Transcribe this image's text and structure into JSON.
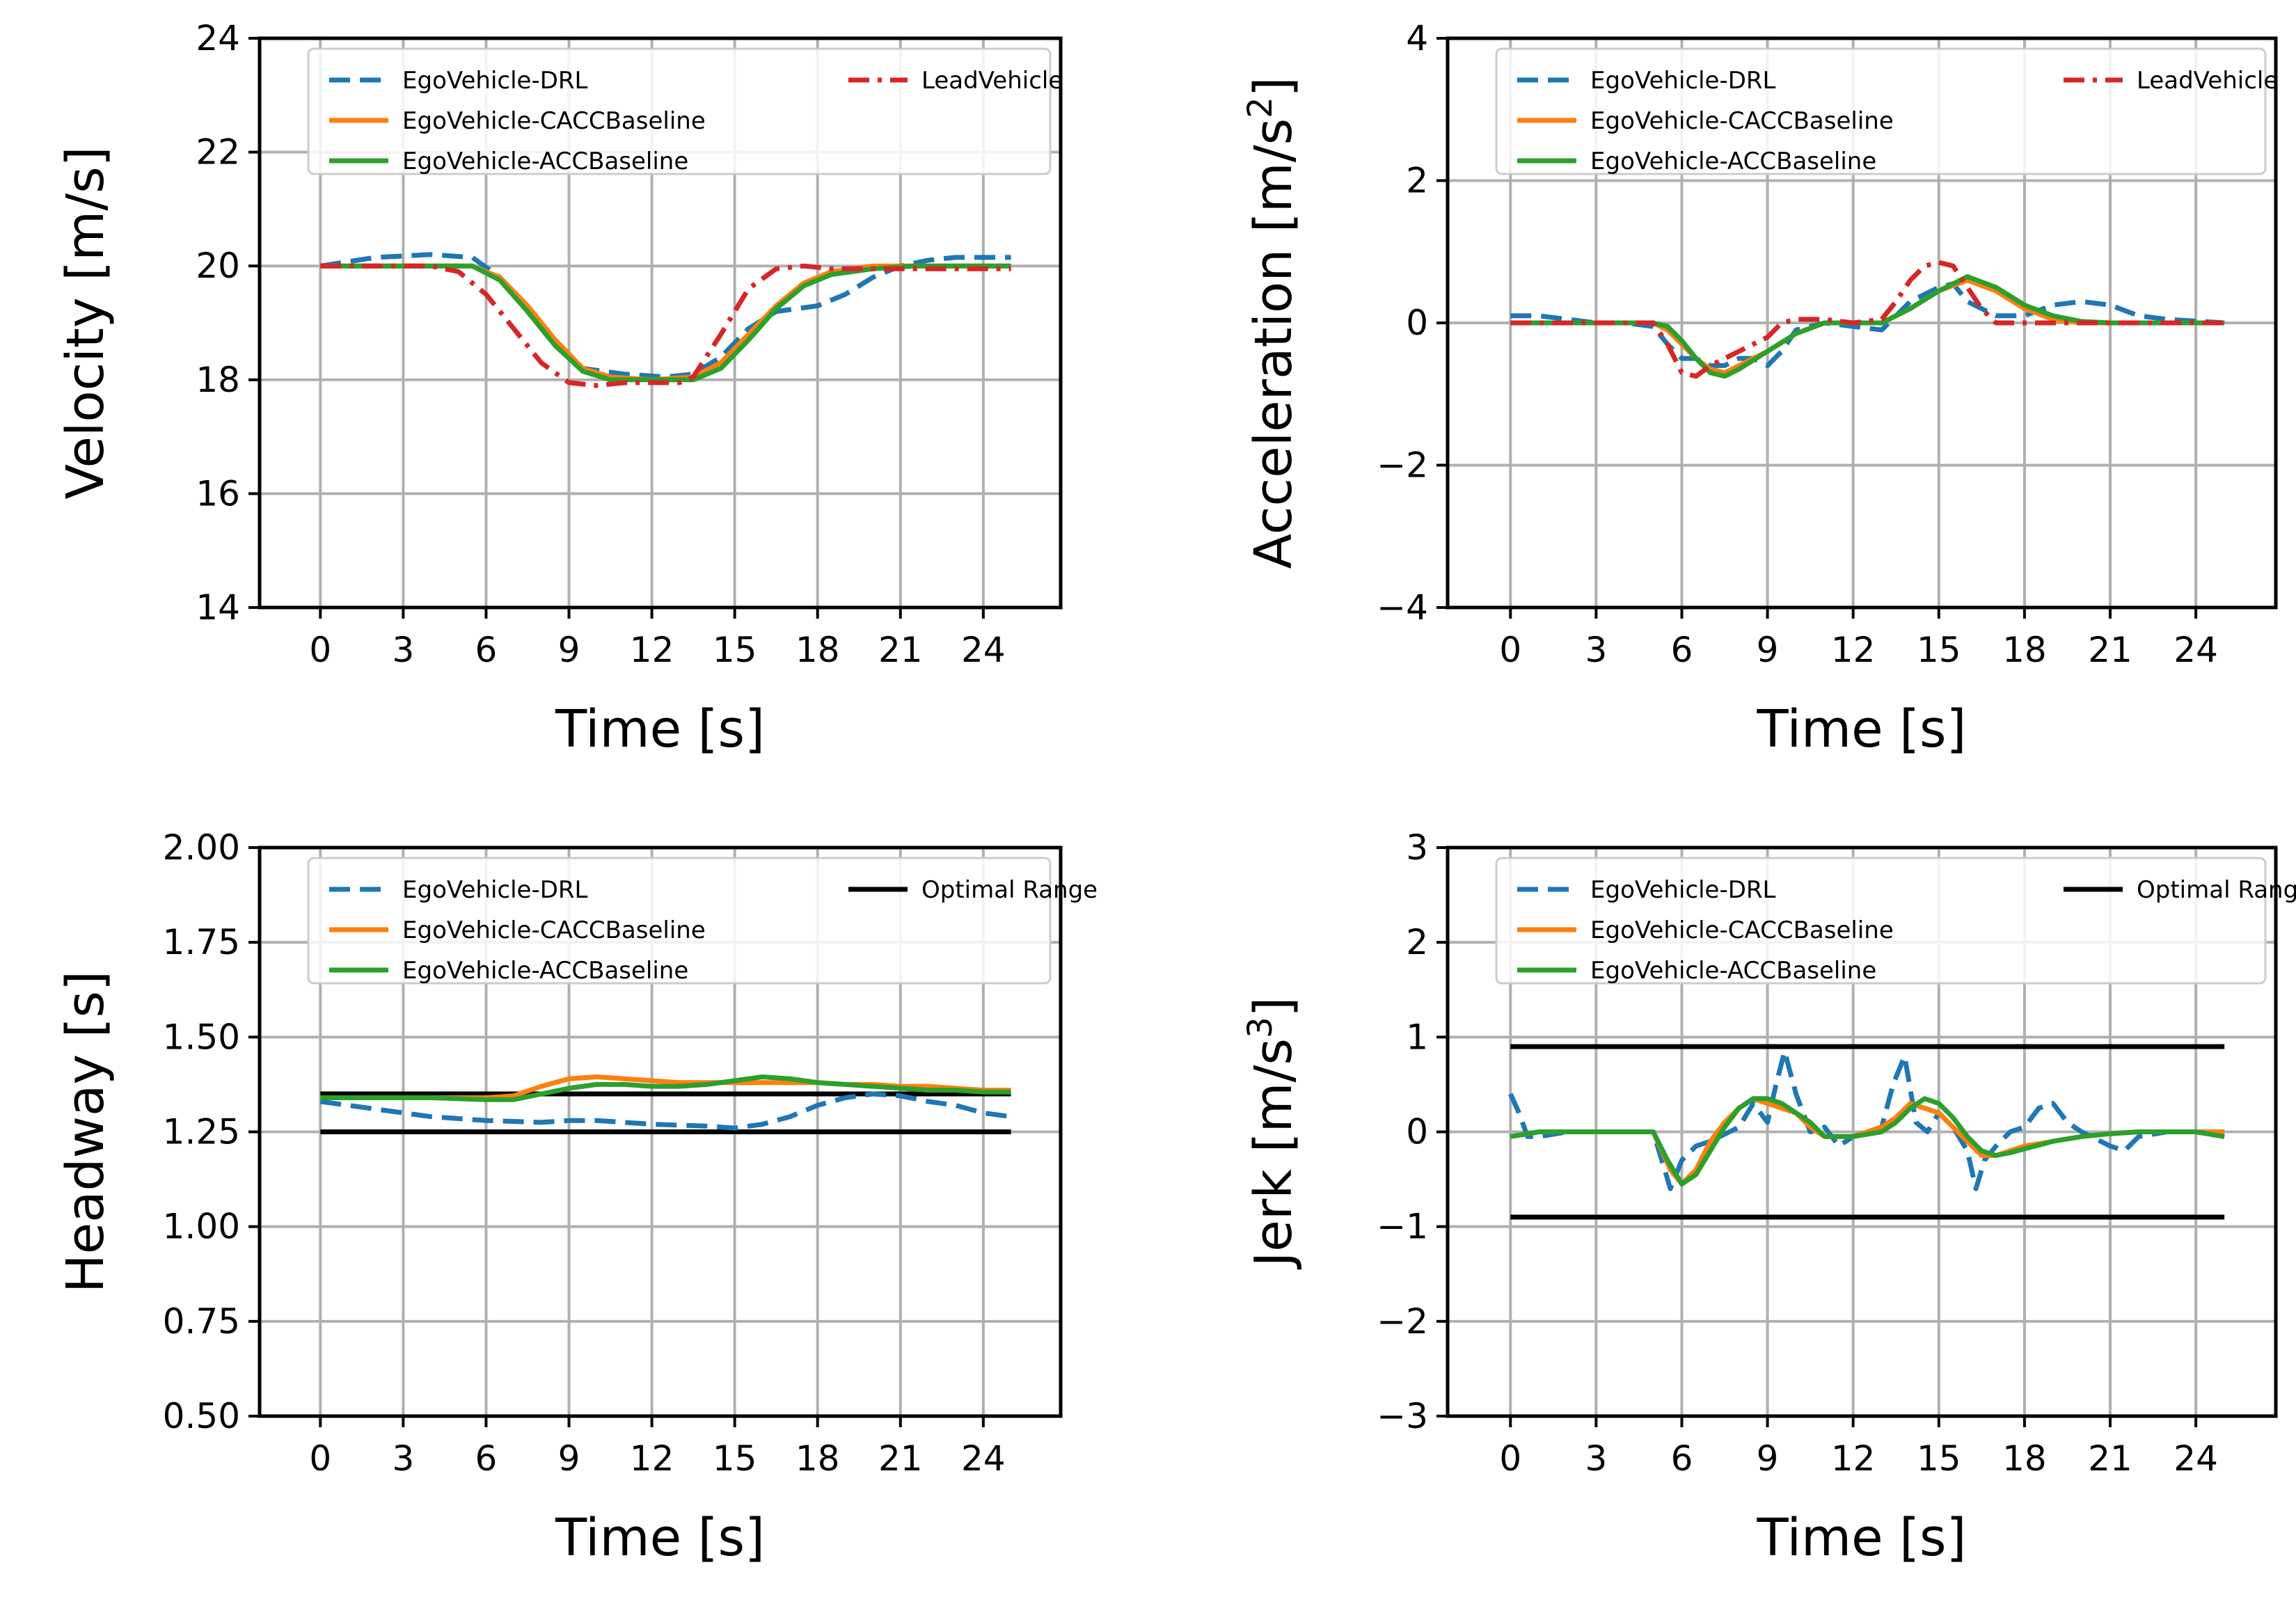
{
  "chart_data": [
    {
      "id": "velocity",
      "type": "line",
      "xlabel": "Time [s]",
      "ylabel": "Velocity [m/s]",
      "xlim": [
        -2.2,
        26.8
      ],
      "ylim": [
        14,
        24
      ],
      "xticks": [
        0,
        3,
        6,
        9,
        12,
        15,
        18,
        21,
        24
      ],
      "xtick_labels": [
        "0",
        "3",
        "6",
        "9",
        "12",
        "15",
        "18",
        "21",
        "24"
      ],
      "yticks": [
        14,
        16,
        18,
        20,
        22,
        24
      ],
      "ytick_labels": [
        "14",
        "16",
        "18",
        "20",
        "22",
        "24"
      ],
      "grid": true,
      "legend": {
        "position": "top",
        "columns": [
          [
            "EgoVehicle-DRL",
            "EgoVehicle-CACCBaseline",
            "EgoVehicle-ACCBaseline"
          ],
          [
            "LeadVehicle"
          ]
        ]
      },
      "series": [
        {
          "name": "EgoVehicle-DRL",
          "color": "#1f77b4",
          "style": "dashed",
          "x": [
            0,
            2,
            4,
            5.5,
            6.5,
            7.5,
            8.5,
            9.5,
            11,
            12.5,
            13.5,
            14.5,
            15.5,
            16.5,
            18,
            19,
            20,
            21,
            22,
            23,
            25
          ],
          "y": [
            20.0,
            20.15,
            20.2,
            20.15,
            19.8,
            19.2,
            18.6,
            18.2,
            18.1,
            18.05,
            18.1,
            18.4,
            18.9,
            19.2,
            19.3,
            19.5,
            19.8,
            20.0,
            20.1,
            20.15,
            20.15
          ]
        },
        {
          "name": "EgoVehicle-CACCBaseline",
          "color": "#ff7f0e",
          "style": "solid",
          "x": [
            0,
            4,
            5.5,
            6.5,
            7.5,
            8.5,
            9.5,
            10.5,
            12,
            13.5,
            14.5,
            15.5,
            16.5,
            17.5,
            18.5,
            20,
            21.5,
            23,
            25
          ],
          "y": [
            20.0,
            20.0,
            20.0,
            19.8,
            19.3,
            18.7,
            18.2,
            18.05,
            18.0,
            18.05,
            18.3,
            18.8,
            19.3,
            19.7,
            19.9,
            20.0,
            20.0,
            20.0,
            20.0
          ]
        },
        {
          "name": "EgoVehicle-ACCBaseline",
          "color": "#2ca02c",
          "style": "solid",
          "x": [
            0,
            4,
            5.5,
            6.5,
            7.5,
            8.5,
            9.5,
            10.5,
            12,
            13.5,
            14.5,
            15.5,
            16.5,
            17.5,
            18.5,
            20,
            21.5,
            23,
            25
          ],
          "y": [
            20.0,
            20.0,
            20.0,
            19.75,
            19.2,
            18.6,
            18.15,
            18.0,
            18.0,
            18.0,
            18.2,
            18.7,
            19.25,
            19.65,
            19.85,
            19.95,
            20.0,
            20.0,
            20.0
          ]
        },
        {
          "name": "LeadVehicle",
          "color": "#d62728",
          "style": "dashdot",
          "x": [
            0,
            4,
            5,
            6,
            7,
            8,
            9,
            10,
            11,
            12,
            13,
            13.5,
            14.5,
            15.5,
            16.5,
            17.5,
            18.5,
            20,
            22,
            25
          ],
          "y": [
            20.0,
            20.0,
            19.9,
            19.5,
            18.9,
            18.3,
            17.95,
            17.9,
            17.95,
            17.95,
            17.95,
            18.05,
            18.8,
            19.6,
            19.95,
            20.0,
            19.95,
            19.95,
            19.95,
            19.95
          ]
        }
      ]
    },
    {
      "id": "acceleration",
      "type": "line",
      "xlabel": "Time [s]",
      "ylabel": "Acceleration [m/s",
      "ylabel_sup": "2",
      "ylabel_end": "]",
      "xlim": [
        -2.2,
        26.8
      ],
      "ylim": [
        -4,
        4
      ],
      "xticks": [
        0,
        3,
        6,
        9,
        12,
        15,
        18,
        21,
        24
      ],
      "xtick_labels": [
        "0",
        "3",
        "6",
        "9",
        "12",
        "15",
        "18",
        "21",
        "24"
      ],
      "yticks": [
        -4,
        -2,
        0,
        2,
        4
      ],
      "ytick_labels": [
        "−4",
        "−2",
        "0",
        "2",
        "4"
      ],
      "grid": true,
      "legend": {
        "position": "top",
        "columns": [
          [
            "EgoVehicle-DRL",
            "EgoVehicle-CACCBaseline",
            "EgoVehicle-ACCBaseline"
          ],
          [
            "LeadVehicle"
          ]
        ]
      },
      "series": [
        {
          "name": "EgoVehicle-DRL",
          "color": "#1f77b4",
          "style": "dashed",
          "x": [
            0,
            1,
            2,
            3,
            4,
            5,
            5.5,
            6,
            6.5,
            7,
            7.5,
            8,
            8.5,
            9,
            9.5,
            10,
            11,
            12,
            13,
            14,
            15,
            15.5,
            16,
            17,
            18,
            19,
            20,
            21,
            22,
            23,
            25
          ],
          "y": [
            0.1,
            0.1,
            0.05,
            0.0,
            0.0,
            -0.05,
            -0.3,
            -0.5,
            -0.5,
            -0.6,
            -0.6,
            -0.5,
            -0.5,
            -0.6,
            -0.4,
            -0.1,
            0.0,
            -0.05,
            -0.1,
            0.3,
            0.5,
            0.55,
            0.3,
            0.1,
            0.1,
            0.25,
            0.3,
            0.25,
            0.1,
            0.05,
            0.0
          ]
        },
        {
          "name": "EgoVehicle-CACCBaseline",
          "color": "#ff7f0e",
          "style": "solid",
          "x": [
            0,
            4,
            5,
            5.5,
            6,
            6.5,
            7,
            7.5,
            8,
            9,
            10,
            11,
            12,
            13,
            14,
            15,
            16,
            17,
            18,
            19,
            20,
            21,
            23,
            25
          ],
          "y": [
            0.0,
            0.0,
            0.0,
            -0.1,
            -0.3,
            -0.5,
            -0.65,
            -0.7,
            -0.6,
            -0.4,
            -0.15,
            0.0,
            0.0,
            0.0,
            0.2,
            0.45,
            0.6,
            0.45,
            0.2,
            0.05,
            0.0,
            0.0,
            0.0,
            0.0
          ]
        },
        {
          "name": "EgoVehicle-ACCBaseline",
          "color": "#2ca02c",
          "style": "solid",
          "x": [
            0,
            4,
            5,
            5.5,
            6,
            6.5,
            7,
            7.5,
            8,
            9,
            10,
            11,
            12,
            13,
            14,
            15,
            16,
            17,
            18,
            19,
            20,
            21,
            23,
            25
          ],
          "y": [
            0.0,
            0.0,
            0.0,
            -0.05,
            -0.25,
            -0.5,
            -0.7,
            -0.75,
            -0.65,
            -0.4,
            -0.15,
            0.0,
            0.0,
            0.0,
            0.2,
            0.45,
            0.65,
            0.5,
            0.25,
            0.1,
            0.02,
            0.0,
            0.0,
            0.0
          ]
        },
        {
          "name": "LeadVehicle",
          "color": "#d62728",
          "style": "dashdot",
          "x": [
            0,
            4,
            5,
            5.5,
            6,
            6.5,
            7,
            7.5,
            8,
            9,
            9.5,
            10,
            11,
            12,
            13,
            13.5,
            14,
            14.5,
            15,
            15.5,
            16,
            16.5,
            17,
            18,
            19,
            20,
            22,
            25
          ],
          "y": [
            0.0,
            0.0,
            0.0,
            -0.3,
            -0.7,
            -0.75,
            -0.6,
            -0.5,
            -0.4,
            -0.2,
            0.0,
            0.05,
            0.05,
            0.0,
            0.05,
            0.3,
            0.6,
            0.8,
            0.85,
            0.8,
            0.5,
            0.2,
            0.0,
            0.0,
            0.0,
            0.0,
            0.0,
            0.0
          ]
        }
      ]
    },
    {
      "id": "headway",
      "type": "line",
      "xlabel": "Time [s]",
      "ylabel": "Headway [s]",
      "xlim": [
        -2.2,
        26.8
      ],
      "ylim": [
        0.5,
        2.0
      ],
      "xticks": [
        0,
        3,
        6,
        9,
        12,
        15,
        18,
        21,
        24
      ],
      "xtick_labels": [
        "0",
        "3",
        "6",
        "9",
        "12",
        "15",
        "18",
        "21",
        "24"
      ],
      "yticks": [
        0.5,
        0.75,
        1.0,
        1.25,
        1.5,
        1.75,
        2.0
      ],
      "ytick_labels": [
        "0.50",
        "0.75",
        "1.00",
        "1.25",
        "1.50",
        "1.75",
        "2.00"
      ],
      "grid": true,
      "legend": {
        "position": "top",
        "columns": [
          [
            "EgoVehicle-DRL",
            "EgoVehicle-CACCBaseline",
            "EgoVehicle-ACCBaseline"
          ],
          [
            "Optimal Range"
          ]
        ]
      },
      "optimal_range": {
        "name": "Optimal Range",
        "color": "#000000",
        "x": [
          0,
          25
        ],
        "levels": [
          1.25,
          1.35
        ]
      },
      "series": [
        {
          "name": "EgoVehicle-DRL",
          "color": "#1f77b4",
          "style": "dashed",
          "x": [
            0,
            2,
            4,
            6,
            8,
            9,
            10,
            12,
            14,
            15,
            16,
            17,
            18,
            19,
            20,
            21,
            22,
            23,
            24,
            25
          ],
          "y": [
            1.33,
            1.31,
            1.29,
            1.28,
            1.275,
            1.28,
            1.28,
            1.27,
            1.265,
            1.26,
            1.27,
            1.29,
            1.32,
            1.34,
            1.35,
            1.345,
            1.33,
            1.32,
            1.3,
            1.29
          ]
        },
        {
          "name": "EgoVehicle-CACCBaseline",
          "color": "#ff7f0e",
          "style": "solid",
          "x": [
            0,
            2,
            4,
            6,
            7,
            8,
            9,
            10,
            11,
            12,
            13,
            14,
            15,
            16,
            17,
            18,
            19,
            20,
            21,
            22,
            23,
            24,
            25
          ],
          "y": [
            1.34,
            1.34,
            1.34,
            1.34,
            1.345,
            1.37,
            1.39,
            1.395,
            1.39,
            1.385,
            1.38,
            1.38,
            1.38,
            1.38,
            1.38,
            1.38,
            1.375,
            1.375,
            1.37,
            1.37,
            1.365,
            1.36,
            1.36
          ]
        },
        {
          "name": "EgoVehicle-ACCBaseline",
          "color": "#2ca02c",
          "style": "solid",
          "x": [
            0,
            2,
            4,
            6,
            7,
            8,
            9,
            10,
            11,
            12,
            13,
            14,
            15,
            16,
            17,
            18,
            19,
            20,
            21,
            22,
            23,
            24,
            25
          ],
          "y": [
            1.34,
            1.34,
            1.34,
            1.335,
            1.335,
            1.35,
            1.365,
            1.375,
            1.375,
            1.37,
            1.37,
            1.375,
            1.385,
            1.395,
            1.39,
            1.38,
            1.375,
            1.37,
            1.365,
            1.36,
            1.36,
            1.355,
            1.355
          ]
        }
      ]
    },
    {
      "id": "jerk",
      "type": "line",
      "xlabel": "Time [s]",
      "ylabel": "Jerk [m/s",
      "ylabel_sup": "3",
      "ylabel_end": "]",
      "xlim": [
        -2.2,
        26.8
      ],
      "ylim": [
        -3,
        3
      ],
      "xticks": [
        0,
        3,
        6,
        9,
        12,
        15,
        18,
        21,
        24
      ],
      "xtick_labels": [
        "0",
        "3",
        "6",
        "9",
        "12",
        "15",
        "18",
        "21",
        "24"
      ],
      "yticks": [
        -3,
        -2,
        -1,
        0,
        1,
        2,
        3
      ],
      "ytick_labels": [
        "−3",
        "−2",
        "−1",
        "0",
        "1",
        "2",
        "3"
      ],
      "grid": true,
      "legend": {
        "position": "top",
        "columns": [
          [
            "EgoVehicle-DRL",
            "EgoVehicle-CACCBaseline",
            "EgoVehicle-ACCBaseline"
          ],
          [
            "Optimal Range"
          ]
        ]
      },
      "optimal_range": {
        "name": "Optimal Range",
        "color": "#000000",
        "x": [
          0,
          25
        ],
        "levels": [
          -0.9,
          0.9
        ]
      },
      "series": [
        {
          "name": "EgoVehicle-DRL",
          "color": "#1f77b4",
          "style": "dashed",
          "x": [
            0,
            0.3,
            0.6,
            1,
            2,
            3,
            4,
            5,
            5.3,
            5.6,
            6,
            6.5,
            7,
            8,
            8.5,
            9,
            9.3,
            9.6,
            10,
            10.5,
            11,
            11.5,
            12,
            13,
            13.4,
            13.8,
            14.2,
            14.6,
            15,
            15.5,
            16,
            16.3,
            16.6,
            17,
            17.5,
            18,
            18.5,
            19,
            19.5,
            20,
            21,
            21.5,
            22,
            23,
            24,
            25
          ],
          "y": [
            0.4,
            0.2,
            -0.05,
            -0.05,
            0.0,
            0.0,
            0.0,
            0.0,
            -0.3,
            -0.6,
            -0.3,
            -0.15,
            -0.1,
            0.05,
            0.3,
            0.1,
            0.5,
            0.85,
            0.4,
            0.0,
            0.05,
            -0.15,
            -0.05,
            0.05,
            0.5,
            0.8,
            0.1,
            0.0,
            0.2,
            0.05,
            -0.2,
            -0.6,
            -0.3,
            -0.15,
            0.0,
            0.05,
            0.25,
            0.3,
            0.1,
            0.0,
            -0.15,
            -0.2,
            -0.05,
            0.0,
            0.0,
            -0.05
          ]
        },
        {
          "name": "EgoVehicle-CACCBaseline",
          "color": "#ff7f0e",
          "style": "solid",
          "x": [
            0,
            1,
            3,
            5,
            5.3,
            5.6,
            6,
            6.5,
            7,
            7.5,
            8,
            8.5,
            9,
            9.5,
            10,
            10.5,
            11,
            12,
            13,
            13.5,
            14,
            14.5,
            15,
            15.5,
            16,
            16.5,
            17,
            17.5,
            18,
            19,
            20,
            21,
            22,
            23,
            24,
            25
          ],
          "y": [
            -0.05,
            0.0,
            0.0,
            0.0,
            -0.2,
            -0.4,
            -0.55,
            -0.4,
            -0.1,
            0.1,
            0.25,
            0.35,
            0.3,
            0.25,
            0.2,
            0.05,
            -0.05,
            -0.05,
            0.05,
            0.15,
            0.3,
            0.25,
            0.2,
            0.05,
            -0.1,
            -0.25,
            -0.25,
            -0.2,
            -0.15,
            -0.1,
            -0.05,
            -0.02,
            0.0,
            0.0,
            0.0,
            0.0
          ]
        },
        {
          "name": "EgoVehicle-ACCBaseline",
          "color": "#2ca02c",
          "style": "solid",
          "x": [
            0,
            1,
            3,
            5,
            5.5,
            6,
            6.5,
            7,
            7.5,
            8,
            8.5,
            9,
            9.5,
            10,
            10.5,
            11,
            12,
            13,
            13.5,
            14,
            14.5,
            15,
            15.5,
            16,
            16.5,
            17,
            17.5,
            18,
            19,
            20,
            21,
            22,
            23,
            24,
            25
          ],
          "y": [
            -0.05,
            0.0,
            0.0,
            0.0,
            -0.3,
            -0.55,
            -0.45,
            -0.2,
            0.05,
            0.25,
            0.35,
            0.35,
            0.3,
            0.2,
            0.1,
            -0.05,
            -0.05,
            0.0,
            0.1,
            0.25,
            0.35,
            0.3,
            0.15,
            -0.05,
            -0.2,
            -0.25,
            -0.22,
            -0.18,
            -0.1,
            -0.05,
            -0.02,
            0.0,
            0.0,
            0.0,
            -0.05
          ]
        }
      ]
    }
  ]
}
